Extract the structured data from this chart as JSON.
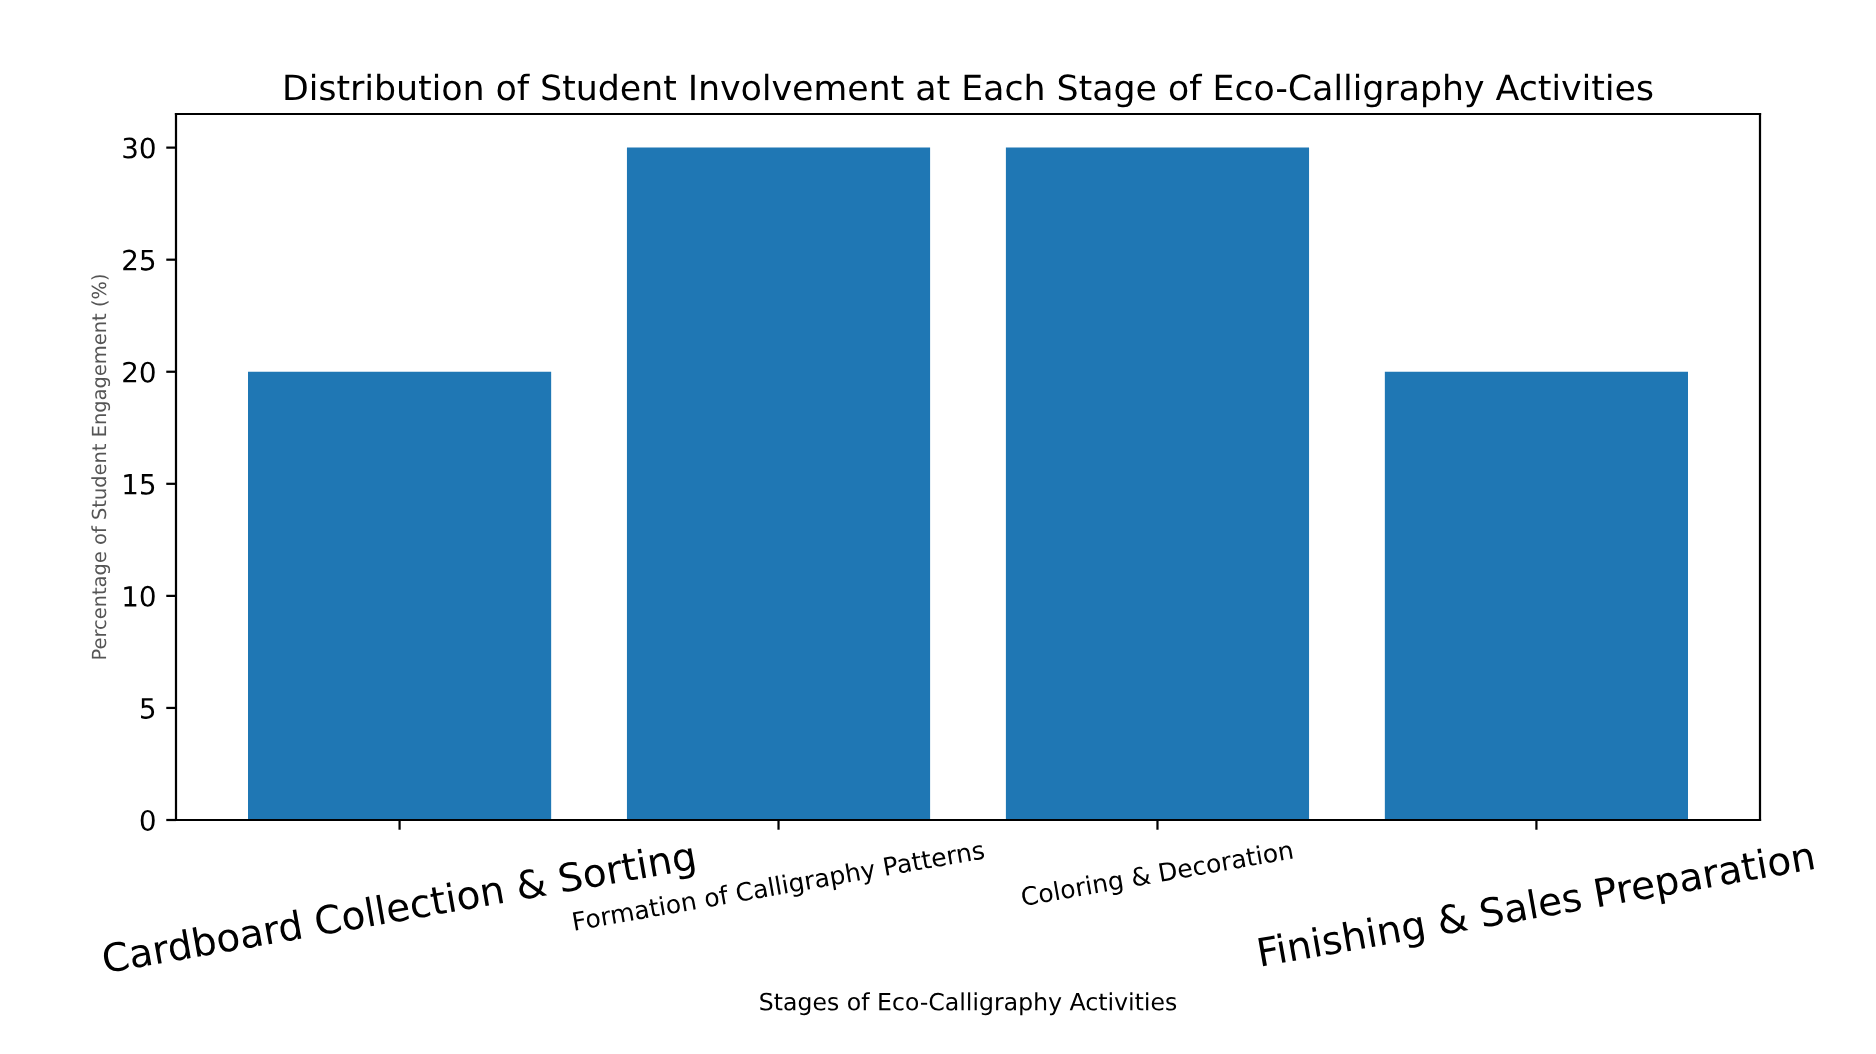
{
  "chart_data": {
    "type": "bar",
    "title": "Distribution of Student Involvement at Each Stage of Eco-Calligraphy Activities",
    "xlabel": "Stages of Eco-Calligraphy Activities",
    "ylabel": "Percentage of Student Engagement (%)",
    "categories": [
      "Cardboard Collection & Sorting",
      "Formation of Calligraphy Patterns",
      "Coloring & Decoration",
      "Finishing & Sales Preparation"
    ],
    "values": [
      20,
      30,
      30,
      20
    ],
    "color": "#1f77b4",
    "ylim": [
      0,
      31.5
    ],
    "yticks": [
      0,
      5,
      10,
      15,
      20,
      25,
      30
    ],
    "grid": false,
    "legend": false
  }
}
